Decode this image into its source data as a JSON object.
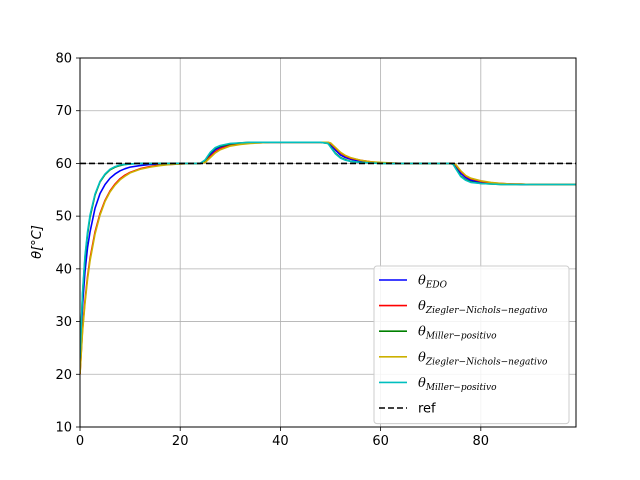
{
  "chart_data": {
    "type": "line",
    "title": "",
    "xlabel": "",
    "ylabel": "θ[°C]",
    "xlim": [
      0,
      99
    ],
    "ylim": [
      10,
      80
    ],
    "xticks": [
      0,
      20,
      40,
      60,
      80
    ],
    "yticks": [
      10,
      20,
      30,
      40,
      50,
      60,
      70,
      80
    ],
    "grid": true,
    "legend_position": "lower-right",
    "series": [
      {
        "name": "θEDO",
        "label_main": "θ",
        "label_sub": "EDO",
        "color": "#0000ff",
        "x": [
          0,
          0.5,
          1,
          1.5,
          2,
          3,
          4,
          5,
          6,
          7,
          8,
          9,
          10,
          12,
          14,
          16,
          18,
          20,
          22,
          24,
          25,
          26,
          27,
          28,
          30,
          32,
          34,
          36,
          38,
          40,
          42,
          44,
          46,
          48,
          49.5,
          50,
          51,
          52,
          53,
          54,
          56,
          58,
          60,
          62,
          64,
          66,
          68,
          70,
          72,
          74,
          74.5,
          75,
          76,
          77,
          78,
          80,
          82,
          84,
          86,
          88,
          90,
          92,
          94,
          96,
          99
        ],
        "y": [
          22,
          33,
          39.5,
          44,
          47,
          51.5,
          54.3,
          56,
          57.2,
          58,
          58.6,
          59,
          59.3,
          59.6,
          59.8,
          59.9,
          60,
          60,
          60,
          60,
          60.4,
          61.6,
          62.6,
          63.1,
          63.6,
          63.8,
          63.9,
          64,
          64,
          64,
          64,
          64,
          64,
          64,
          64,
          63.6,
          62.5,
          61.6,
          61.1,
          60.8,
          60.4,
          60.2,
          60.1,
          60,
          60,
          60,
          60,
          60,
          60,
          60,
          60,
          59.5,
          58.1,
          57.3,
          56.8,
          56.4,
          56.2,
          56.1,
          56.1,
          56,
          56,
          56,
          56,
          56,
          56
        ]
      },
      {
        "name": "θZiegler−Nichols−negativo",
        "label_main": "θ",
        "label_sub": "Ziegler−Nichols−negativo",
        "color": "#ff0000",
        "x": [
          0,
          0.5,
          1,
          1.5,
          2,
          3,
          4,
          5,
          6,
          7,
          8,
          9,
          10,
          12,
          14,
          16,
          18,
          20,
          22,
          24,
          25,
          26,
          27,
          28,
          30,
          32,
          34,
          36,
          38,
          40,
          42,
          44,
          46,
          48,
          49.5,
          50,
          51,
          52,
          53,
          54,
          56,
          58,
          60,
          62,
          64,
          66,
          68,
          70,
          72,
          74,
          74.5,
          75,
          76,
          77,
          78,
          80,
          82,
          84,
          86,
          88,
          90,
          92,
          94,
          96,
          99
        ],
        "y": [
          20,
          28.5,
          34,
          38.5,
          42,
          47,
          50.5,
          53,
          54.8,
          56.1,
          57.1,
          57.8,
          58.3,
          59,
          59.4,
          59.7,
          59.8,
          59.9,
          60,
          60,
          60.3,
          61.3,
          62.2,
          62.8,
          63.4,
          63.7,
          63.9,
          63.9,
          64,
          64,
          64,
          64,
          64,
          64,
          64,
          63.8,
          62.9,
          62,
          61.4,
          61,
          60.6,
          60.3,
          60.1,
          60.1,
          60,
          60,
          60,
          60,
          60,
          60,
          60,
          59.7,
          58.5,
          57.6,
          57.1,
          56.6,
          56.3,
          56.2,
          56.1,
          56.1,
          56,
          56,
          56,
          56,
          56
        ]
      },
      {
        "name": "θMiller−positivo",
        "label_main": "θ",
        "label_sub": "Miller−positivo",
        "color": "#008000",
        "x": [
          0,
          0.5,
          1,
          1.5,
          2,
          3,
          4,
          5,
          6,
          7,
          8,
          9,
          10,
          12,
          14,
          16,
          18,
          20,
          22,
          24,
          25,
          26,
          27,
          28,
          30,
          32,
          34,
          36,
          38,
          40,
          42,
          44,
          46,
          48,
          49.5,
          50,
          51,
          52,
          53,
          54,
          56,
          58,
          60,
          62,
          64,
          66,
          68,
          70,
          72,
          74,
          74.5,
          75,
          76,
          77,
          78,
          80,
          82,
          84,
          86,
          88,
          90,
          92,
          94,
          96,
          99
        ],
        "y": [
          23,
          35,
          42,
          46.5,
          49.8,
          54,
          56.5,
          57.9,
          58.8,
          59.3,
          59.6,
          59.8,
          59.9,
          60,
          60,
          60,
          60,
          60,
          60,
          60,
          60.6,
          62,
          62.9,
          63.3,
          63.7,
          63.9,
          64,
          64,
          64,
          64,
          64,
          64,
          64,
          64,
          63.8,
          63.2,
          61.9,
          61.1,
          60.7,
          60.4,
          60.2,
          60.1,
          60,
          60,
          60,
          60,
          60,
          60,
          60,
          60,
          59.8,
          59.1,
          57.6,
          56.9,
          56.5,
          56.2,
          56.1,
          56,
          56,
          56,
          56,
          56,
          56,
          56,
          56
        ]
      },
      {
        "name": "θZiegler−Nichols−negativo",
        "label_main": "θ",
        "label_sub": "Ziegler−Nichols−negativo",
        "color": "#ccb000",
        "x": [
          0,
          0.5,
          1,
          1.5,
          2,
          3,
          4,
          5,
          6,
          7,
          8,
          9,
          10,
          12,
          14,
          16,
          18,
          20,
          22,
          24,
          25,
          26,
          27,
          28,
          30,
          32,
          34,
          36,
          38,
          40,
          42,
          44,
          46,
          48,
          49.5,
          50,
          51,
          52,
          53,
          54,
          56,
          58,
          60,
          62,
          64,
          66,
          68,
          70,
          72,
          74,
          74.5,
          75,
          76,
          77,
          78,
          80,
          82,
          84,
          86,
          88,
          90,
          92,
          94,
          96,
          99
        ],
        "y": [
          20,
          28,
          33.5,
          38,
          41.5,
          46.6,
          50.2,
          52.8,
          54.6,
          55.9,
          56.9,
          57.6,
          58.2,
          58.9,
          59.3,
          59.6,
          59.8,
          59.9,
          60,
          60,
          60.2,
          61.1,
          62,
          62.6,
          63.3,
          63.6,
          63.8,
          63.9,
          64,
          64,
          64,
          64,
          64,
          64,
          64,
          63.9,
          63,
          62.1,
          61.5,
          61.1,
          60.6,
          60.3,
          60.2,
          60.1,
          60,
          60,
          60,
          60,
          60,
          60,
          60,
          59.8,
          58.6,
          57.7,
          57.2,
          56.7,
          56.4,
          56.2,
          56.1,
          56.1,
          56,
          56,
          56,
          56,
          56
        ]
      },
      {
        "name": "θMiller−positivo",
        "label_main": "θ",
        "label_sub": "Miller−positivo",
        "color": "#00bfbf",
        "x": [
          0,
          0.5,
          1,
          1.5,
          2,
          3,
          4,
          5,
          6,
          7,
          8,
          9,
          10,
          12,
          14,
          16,
          18,
          20,
          22,
          24,
          25,
          26,
          27,
          28,
          30,
          32,
          34,
          36,
          38,
          40,
          42,
          44,
          46,
          48,
          49.5,
          50,
          51,
          52,
          53,
          54,
          56,
          58,
          60,
          62,
          64,
          66,
          68,
          70,
          72,
          74,
          74.5,
          75,
          76,
          77,
          78,
          80,
          82,
          84,
          86,
          88,
          90,
          92,
          94,
          96,
          99
        ],
        "y": [
          23,
          35.5,
          42.5,
          47,
          50.2,
          54.2,
          56.6,
          58,
          58.9,
          59.4,
          59.7,
          59.8,
          59.9,
          60,
          60,
          60,
          60,
          60,
          60,
          60,
          60.7,
          62.1,
          63,
          63.4,
          63.8,
          63.9,
          64,
          64,
          64,
          64,
          64,
          64,
          64,
          64,
          63.8,
          63.1,
          61.8,
          61,
          60.6,
          60.4,
          60.2,
          60.1,
          60,
          60,
          60,
          60,
          60,
          60,
          60,
          60,
          59.8,
          59,
          57.5,
          56.8,
          56.4,
          56.2,
          56.1,
          56,
          56,
          56,
          56,
          56,
          56,
          56,
          56
        ]
      },
      {
        "name": "ref",
        "label_main": "ref",
        "label_sub": "",
        "color": "#000000",
        "dashed": true,
        "x": [
          0,
          99
        ],
        "y": [
          60,
          60
        ]
      }
    ]
  }
}
